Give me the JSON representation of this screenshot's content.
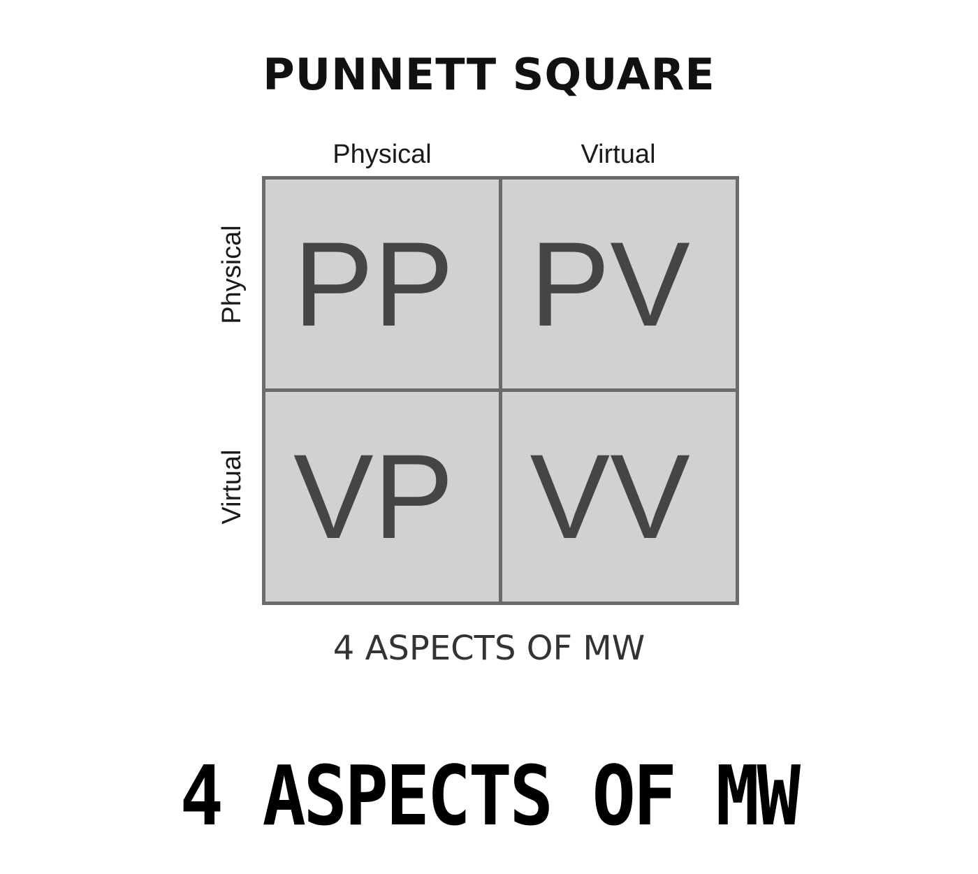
{
  "title": "PUNNETT SQUARE",
  "columns": [
    "Physical",
    "Virtual"
  ],
  "rows": [
    "Physical",
    "Virtual"
  ],
  "cells": [
    "PP",
    "PV",
    "VP",
    "VV"
  ],
  "subcaption": "4 ASPECTS OF MW",
  "caption": "4 ASPECTS OF MW",
  "colors": {
    "cell_fill": "#d1d1d1",
    "border": "#6b6b6b",
    "cell_text": "#454545"
  }
}
